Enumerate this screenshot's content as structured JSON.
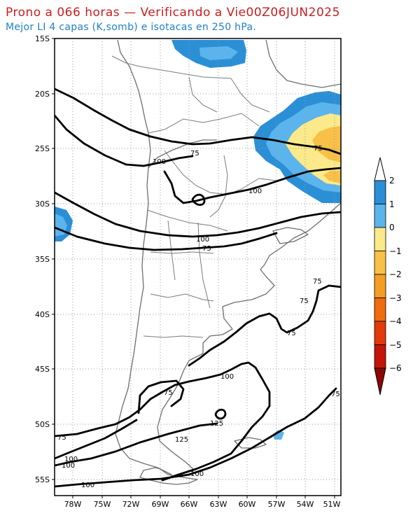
{
  "header": {
    "title": "Prono a 066 horas — Verificando a Vie00Z06JUN2025",
    "subtitle": "Mejor LI 4 capas (K,somb) e isotacas en 250 hPa."
  },
  "map": {
    "lat_ticks": [
      "15S",
      "20S",
      "25S",
      "30S",
      "35S",
      "40S",
      "45S",
      "50S",
      "55S"
    ],
    "lon_ticks": [
      "78W",
      "75W",
      "72W",
      "69W",
      "66W",
      "63W",
      "60W",
      "57W",
      "54W",
      "51W"
    ],
    "isotach_labels": [
      {
        "id": "lbl-75-a",
        "text": "75"
      },
      {
        "id": "lbl-75-b",
        "text": "75"
      },
      {
        "id": "lbl-100-a",
        "text": "100"
      },
      {
        "id": "lbl-100-b",
        "text": "100"
      },
      {
        "id": "lbl-100-c",
        "text": "100"
      },
      {
        "id": "lbl-75-c",
        "text": "75"
      },
      {
        "id": "lbl-75-d",
        "text": "75"
      },
      {
        "id": "lbl-75-e",
        "text": "75"
      },
      {
        "id": "lbl-75-f",
        "text": "75"
      },
      {
        "id": "lbl-100-d",
        "text": "100"
      },
      {
        "id": "lbl-75-g",
        "text": "75"
      },
      {
        "id": "lbl-125-a",
        "text": "125"
      },
      {
        "id": "lbl-125-b",
        "text": "125"
      },
      {
        "id": "lbl-75-h",
        "text": "75"
      },
      {
        "id": "lbl-75-i",
        "text": "75"
      },
      {
        "id": "lbl-100-e",
        "text": "100"
      },
      {
        "id": "lbl-100-f",
        "text": "100"
      },
      {
        "id": "lbl-100-g",
        "text": "100"
      },
      {
        "id": "lbl-100-h",
        "text": "100"
      }
    ]
  },
  "colorbar": {
    "labels": [
      "2",
      "1",
      "0",
      "−1",
      "−2",
      "−3",
      "−4",
      "−5",
      "−6"
    ],
    "colors": [
      "#2b8fd6",
      "#5cb4ec",
      "#fbe98a",
      "#f8c048",
      "#f59e24",
      "#f06c0e",
      "#e23a0a",
      "#c41508",
      "#8e0505"
    ]
  }
}
